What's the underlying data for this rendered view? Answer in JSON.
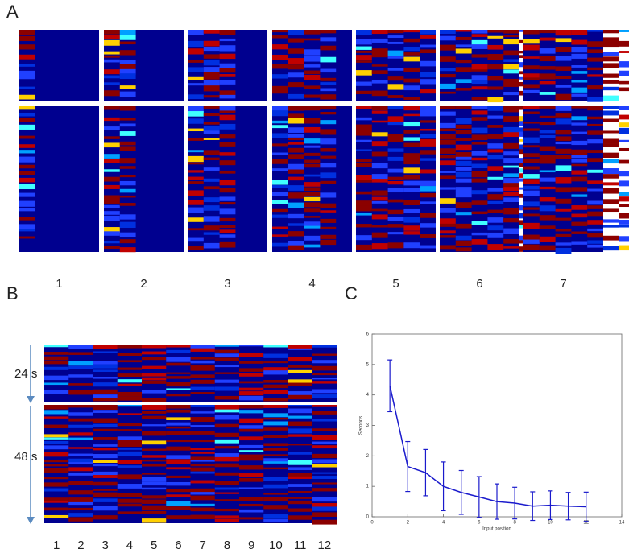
{
  "panel_labels": [
    "A",
    "B",
    "C"
  ],
  "panel_a": {
    "columns": [
      "1",
      "2",
      "3",
      "4",
      "5",
      "6",
      "7"
    ]
  },
  "panel_b": {
    "columns": [
      "1",
      "2",
      "3",
      "4",
      "5",
      "6",
      "7",
      "8",
      "9",
      "10",
      "11",
      "12"
    ],
    "segments": [
      "24 s",
      "48 s"
    ]
  },
  "chart_data": {
    "type": "line",
    "xlabel": "Input position",
    "ylabel": "Seconds",
    "x": [
      1,
      2,
      3,
      4,
      5,
      6,
      7,
      8,
      9,
      10,
      11,
      12
    ],
    "values": [
      4.3,
      1.65,
      1.45,
      1.0,
      0.8,
      0.65,
      0.5,
      0.45,
      0.35,
      0.38,
      0.35,
      0.33
    ],
    "errors": [
      0.85,
      0.82,
      0.76,
      0.8,
      0.72,
      0.67,
      0.58,
      0.52,
      0.47,
      0.47,
      0.45,
      0.48
    ],
    "color": "#1a1acc",
    "xlim": [
      0,
      14
    ],
    "xticks": [
      0,
      2,
      4,
      6,
      8,
      10,
      12,
      14
    ],
    "ylim": [
      0,
      6
    ],
    "yticks": [
      0,
      1,
      2,
      3,
      4,
      5,
      6
    ]
  }
}
